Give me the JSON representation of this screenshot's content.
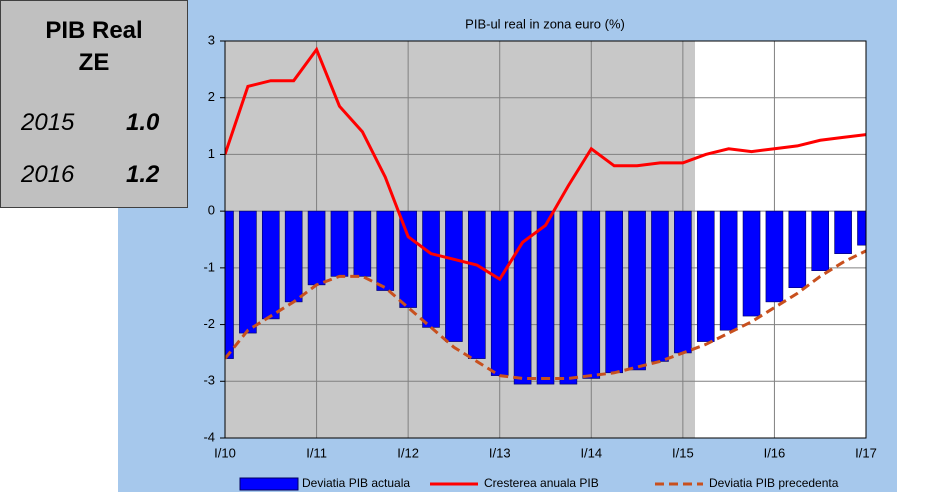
{
  "summary": {
    "title_lines": [
      "PIB Real",
      "ZE"
    ],
    "rows": [
      [
        "2015",
        "1.0"
      ],
      [
        "2016",
        "1.2"
      ]
    ]
  },
  "chart_data": {
    "type": "bar-line",
    "title": "PIB-ul real in zona euro (%)",
    "categories": [
      "I/10",
      null,
      null,
      null,
      "I/11",
      null,
      null,
      null,
      "I/12",
      null,
      null,
      null,
      "I/13",
      null,
      null,
      null,
      "I/14",
      null,
      null,
      null,
      "I/15",
      null,
      null,
      null,
      "I/16",
      null,
      null,
      null,
      "I/17"
    ],
    "series": [
      {
        "name": "Deviatia PIB actuala",
        "kind": "bar",
        "color": "#0000ff",
        "values": [
          -2.6,
          -2.15,
          -1.9,
          -1.6,
          -1.3,
          -1.15,
          -1.15,
          -1.4,
          -1.7,
          -2.05,
          -2.3,
          -2.6,
          -2.9,
          -3.05,
          -3.05,
          -3.05,
          -2.95,
          -2.85,
          -2.8,
          -2.65,
          -2.5,
          -2.3,
          -2.1,
          -1.85,
          -1.6,
          -1.35,
          -1.05,
          -0.75,
          -0.6
        ]
      },
      {
        "name": "Cresterea anuala PIB",
        "kind": "line",
        "color": "#ff0000",
        "values": [
          1.0,
          2.2,
          2.3,
          2.3,
          2.85,
          1.85,
          1.4,
          0.6,
          -0.45,
          -0.75,
          -0.85,
          -0.95,
          -1.2,
          -0.55,
          -0.25,
          0.45,
          1.1,
          0.8,
          0.8,
          0.85,
          0.85,
          1.0,
          1.1,
          1.05,
          1.1,
          1.15,
          1.25,
          1.3,
          1.35
        ]
      },
      {
        "name": "Deviatia PIB precedenta",
        "kind": "dashed",
        "color": "#c8501e",
        "values": [
          -2.6,
          -2.1,
          -1.85,
          -1.6,
          -1.3,
          -1.15,
          -1.15,
          -1.35,
          -1.7,
          -2.05,
          -2.4,
          -2.65,
          -2.9,
          -2.95,
          -2.95,
          -2.95,
          -2.9,
          -2.85,
          -2.75,
          -2.65,
          -2.5,
          -2.35,
          -2.15,
          -1.95,
          -1.7,
          -1.45,
          -1.15,
          -0.9,
          -0.7
        ]
      }
    ],
    "ylim": [
      -4,
      3
    ],
    "yticks": [
      -4,
      -3,
      -2,
      -1,
      0,
      1,
      2,
      3
    ],
    "grid": true
  }
}
